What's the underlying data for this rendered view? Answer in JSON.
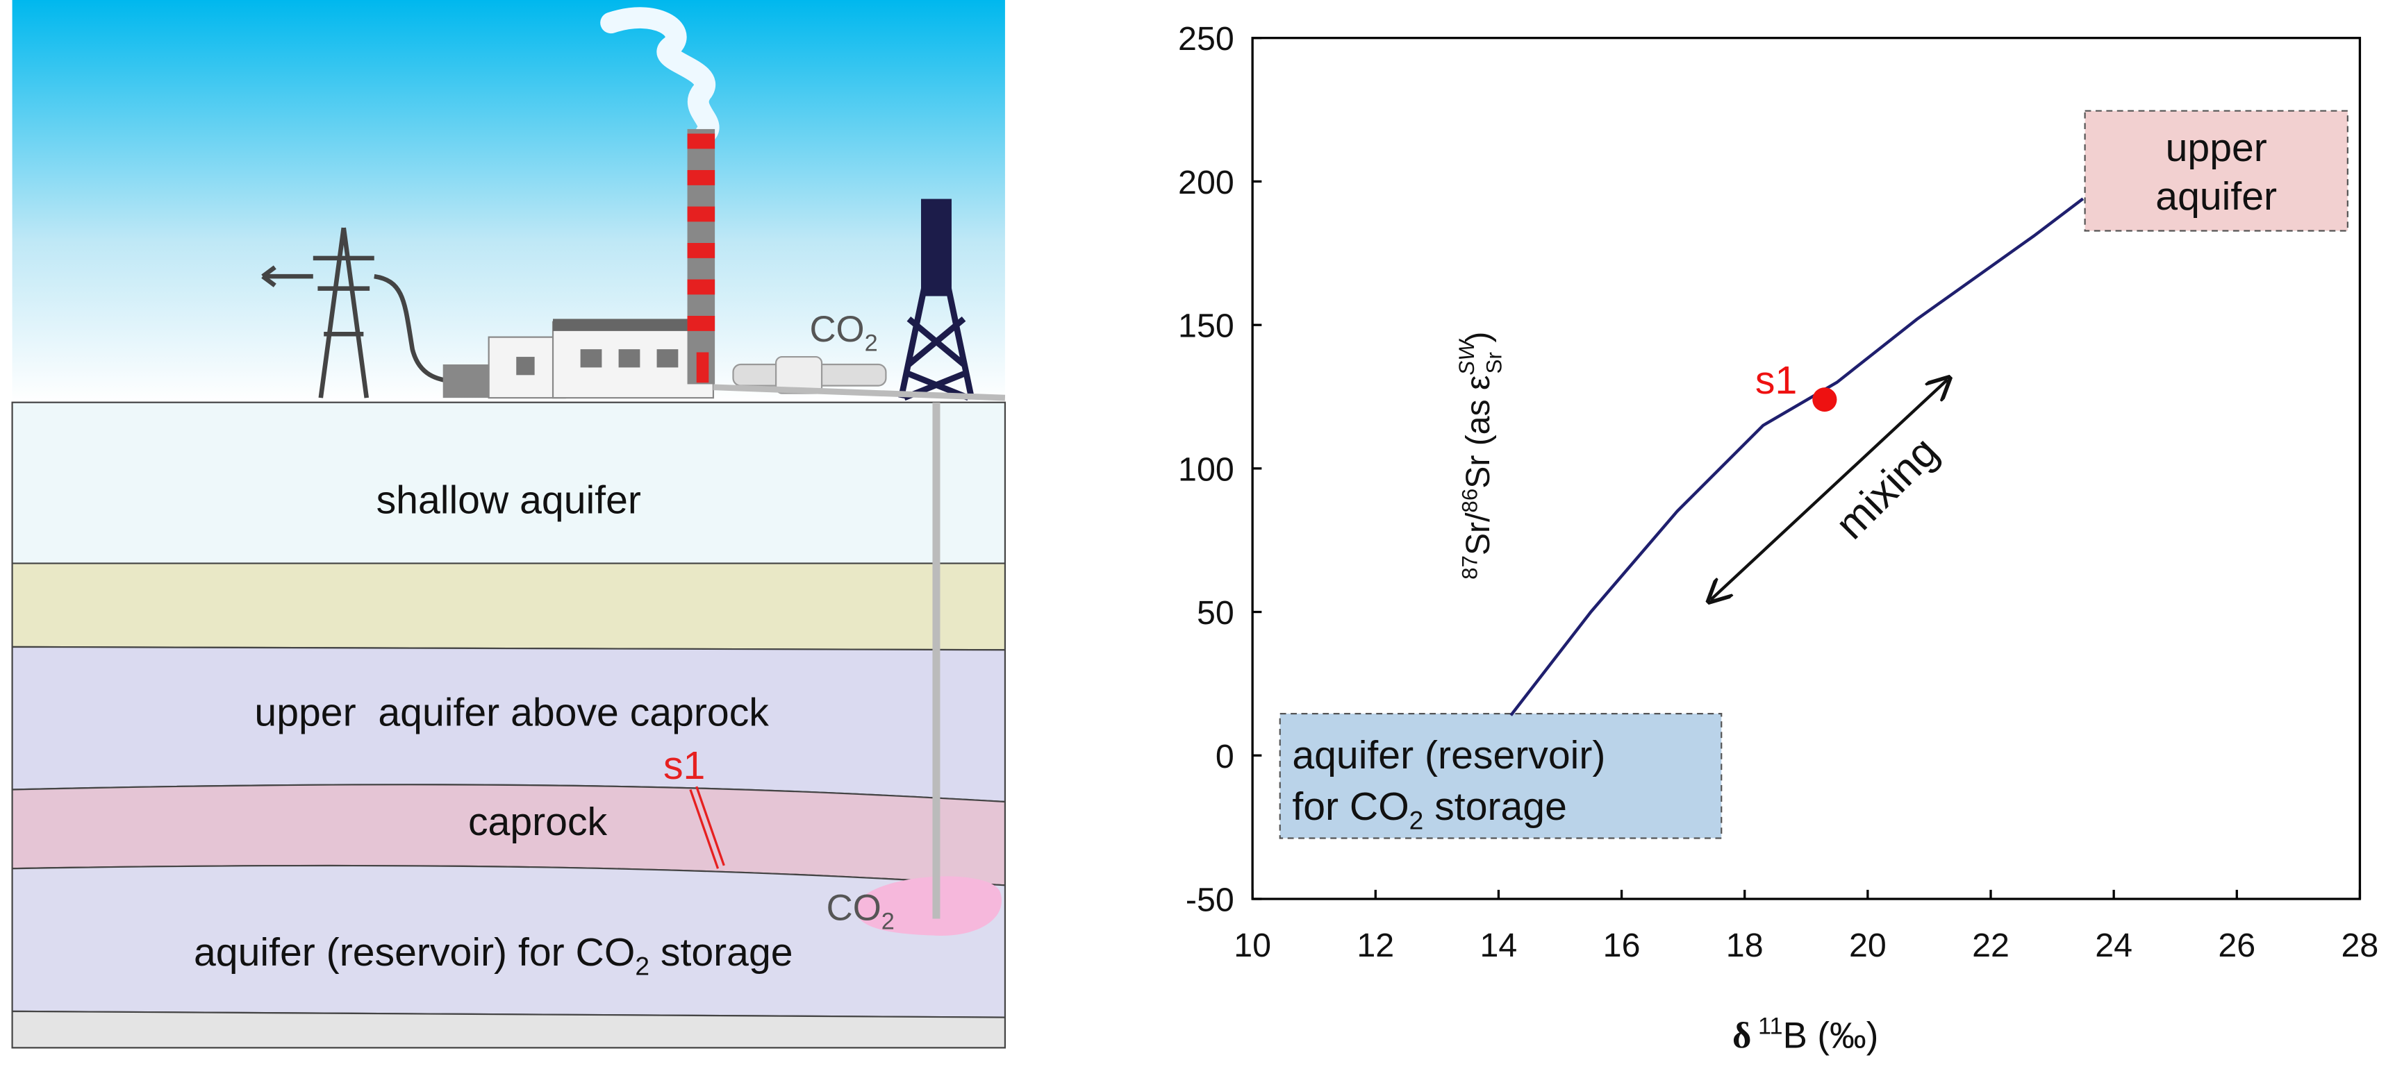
{
  "diagram": {
    "layers": {
      "shallow": "shallow aquifer",
      "upper": "upper  aquifer above caprock",
      "caprock": "caprock",
      "reservoir": [
        "aquifer (reservoir) for CO",
        "2",
        " storage"
      ]
    },
    "s1": "s1",
    "co2_top": [
      "CO",
      "2"
    ],
    "co2_bottom": [
      "CO",
      "2"
    ]
  },
  "chart_data": {
    "type": "line",
    "xlabel": [
      "δ",
      " 11",
      "B (‰)"
    ],
    "ylabel": [
      "87",
      "Sr/",
      "86",
      "Sr (as ε",
      "SW",
      "Sr",
      " )"
    ],
    "xlim": [
      10,
      28
    ],
    "xticks": [
      10,
      12,
      14,
      16,
      18,
      20,
      22,
      24,
      26,
      28
    ],
    "ylim": [
      -50,
      250
    ],
    "yticks": [
      -50,
      0,
      50,
      100,
      150,
      200,
      250
    ],
    "series": [
      {
        "color": "#1f1f6e",
        "x": [
          14.2,
          15.5,
          16.9,
          18.3,
          19.5,
          20.8,
          22.7,
          23.5
        ],
        "values": [
          14,
          50,
          85,
          115,
          130,
          152,
          181,
          194
        ]
      }
    ],
    "points": [
      {
        "label": "s1",
        "x": 19.3,
        "y": 124,
        "color": "#ee1111"
      }
    ],
    "boxes": {
      "upper": [
        "upper",
        "aquifer"
      ],
      "reservoir": [
        [
          "aquifer (reservoir)"
        ],
        [
          "for CO",
          "2",
          " storage"
        ]
      ]
    },
    "annotation": "mixing"
  }
}
